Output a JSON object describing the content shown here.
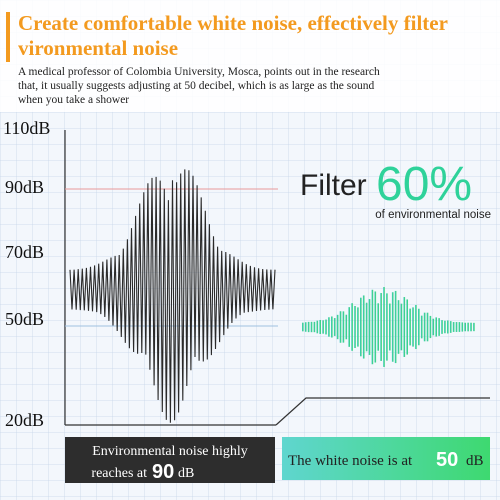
{
  "header": {
    "title_lines": [
      "Create comfortable white noise, effectively filter",
      "vironmental noise"
    ],
    "description_lines": [
      "A medical professor of Colombia University, Mosca, points out in the research",
      "that, it usually suggests adjusting at 50 decibel, which is as large as the sound",
      "when you take a shower"
    ]
  },
  "axis_labels": [
    "110dB",
    "90dB",
    "70dB",
    "50dB",
    "20dB"
  ],
  "filter": {
    "word": "Filter",
    "percent": "60%",
    "caption": "of environmental noise"
  },
  "environment_box": {
    "text": "Environmental noise highly",
    "text2": "reaches at",
    "number": "90",
    "unit": "dB"
  },
  "white_noise_box": {
    "text": "The white noise is at",
    "number": "50",
    "unit": "dB"
  }
}
